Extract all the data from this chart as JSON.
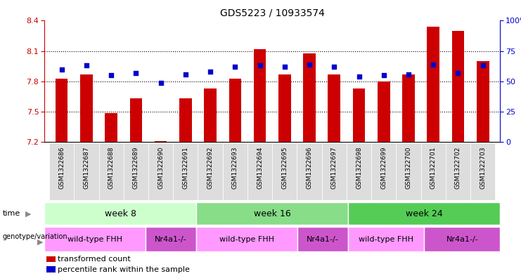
{
  "title": "GDS5223 / 10933574",
  "samples": [
    "GSM1322686",
    "GSM1322687",
    "GSM1322688",
    "GSM1322689",
    "GSM1322690",
    "GSM1322691",
    "GSM1322692",
    "GSM1322693",
    "GSM1322694",
    "GSM1322695",
    "GSM1322696",
    "GSM1322697",
    "GSM1322698",
    "GSM1322699",
    "GSM1322700",
    "GSM1322701",
    "GSM1322702",
    "GSM1322703"
  ],
  "transformed_count": [
    7.83,
    7.87,
    7.49,
    7.63,
    7.21,
    7.63,
    7.73,
    7.83,
    8.12,
    7.87,
    8.08,
    7.87,
    7.73,
    7.8,
    7.87,
    8.34,
    8.3,
    8.0
  ],
  "percentile_rank": [
    60,
    63,
    55,
    57,
    49,
    56,
    58,
    62,
    63,
    62,
    64,
    62,
    54,
    55,
    56,
    64,
    57,
    63
  ],
  "ylim_left": [
    7.2,
    8.4
  ],
  "ylim_right": [
    0,
    100
  ],
  "yticks_left": [
    7.2,
    7.5,
    7.8,
    8.1,
    8.4
  ],
  "yticks_right": [
    0,
    25,
    50,
    75,
    100
  ],
  "bar_color": "#CC0000",
  "dot_color": "#0000CC",
  "bar_bottom": 7.2,
  "time_groups": [
    {
      "label": "week 8",
      "start": 0,
      "end": 6,
      "color": "#ccffcc"
    },
    {
      "label": "week 16",
      "start": 6,
      "end": 12,
      "color": "#88dd88"
    },
    {
      "label": "week 24",
      "start": 12,
      "end": 18,
      "color": "#55cc55"
    }
  ],
  "genotype_groups": [
    {
      "label": "wild-type FHH",
      "start": 0,
      "end": 4,
      "color": "#ff99ff"
    },
    {
      "label": "Nr4a1-/-",
      "start": 4,
      "end": 6,
      "color": "#cc55cc"
    },
    {
      "label": "wild-type FHH",
      "start": 6,
      "end": 10,
      "color": "#ff99ff"
    },
    {
      "label": "Nr4a1-/-",
      "start": 10,
      "end": 12,
      "color": "#cc55cc"
    },
    {
      "label": "wild-type FHH",
      "start": 12,
      "end": 15,
      "color": "#ff99ff"
    },
    {
      "label": "Nr4a1-/-",
      "start": 15,
      "end": 18,
      "color": "#cc55cc"
    }
  ],
  "bg_color": "#ffffff",
  "plot_bg_color": "#ffffff",
  "axis_color_left": "#CC0000",
  "axis_color_right": "#0000CC",
  "xlabel_bg_color": "#dddddd",
  "arrow_color": "#888888"
}
